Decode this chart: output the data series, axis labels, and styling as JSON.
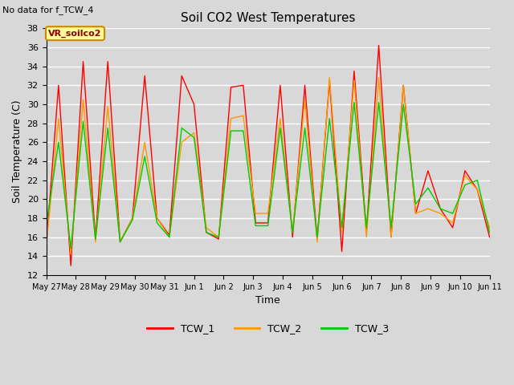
{
  "title": "Soil CO2 West Temperatures",
  "subtitle": "No data for f_TCW_4",
  "xlabel": "Time",
  "ylabel": "Soil Temperature (C)",
  "ylim": [
    12,
    38
  ],
  "yticks": [
    12,
    14,
    16,
    18,
    20,
    22,
    24,
    26,
    28,
    30,
    32,
    34,
    36,
    38
  ],
  "background_color": "#d8d8d8",
  "plot_bg_color": "#d8d8d8",
  "grid_color": "white",
  "annotation_text": "VR_soilco2",
  "annotation_bg": "#ffff99",
  "annotation_border": "#cc8800",
  "colors": {
    "TCW_1": "#ff0000",
    "TCW_2": "#ff9900",
    "TCW_3": "#00cc00"
  },
  "x_tick_labels": [
    "May 27",
    "May 28",
    "May 29",
    "May 30",
    "May 31",
    "Jun 1",
    "Jun 2",
    "Jun 3",
    "Jun 4",
    "Jun 5",
    "Jun 6",
    "Jun 7",
    "Jun 8",
    "Jun 9",
    "Jun 10",
    "Jun 11"
  ],
  "TCW_1": [
    15.0,
    32.0,
    13.0,
    34.5,
    15.8,
    34.5,
    15.5,
    18.0,
    33.0,
    18.0,
    16.2,
    33.0,
    30.0,
    16.5,
    15.8,
    31.8,
    32.0,
    17.5,
    17.5,
    32.0,
    16.0,
    32.0,
    15.8,
    32.5,
    14.5,
    33.5,
    16.5,
    36.2,
    16.0,
    32.0,
    18.5,
    23.0,
    19.0,
    17.0,
    23.0,
    21.0,
    16.0
  ],
  "TCW_2": [
    15.0,
    28.5,
    14.2,
    30.5,
    15.5,
    29.8,
    15.5,
    18.0,
    26.0,
    18.0,
    16.0,
    26.0,
    27.0,
    17.0,
    16.0,
    28.5,
    28.8,
    18.5,
    18.5,
    28.5,
    16.5,
    30.5,
    15.5,
    32.8,
    16.5,
    32.5,
    16.0,
    32.8,
    16.0,
    32.0,
    18.5,
    19.0,
    18.5,
    17.5,
    22.5,
    21.0,
    17.0
  ],
  "TCW_3": [
    17.2,
    26.0,
    14.8,
    28.2,
    15.8,
    27.5,
    15.5,
    17.8,
    24.5,
    17.5,
    16.0,
    27.5,
    26.5,
    16.5,
    16.0,
    27.2,
    27.2,
    17.2,
    17.2,
    27.5,
    16.5,
    27.5,
    16.0,
    28.5,
    17.0,
    30.2,
    17.0,
    30.2,
    17.0,
    30.0,
    19.5,
    21.2,
    19.0,
    18.5,
    21.5,
    22.0,
    16.5
  ]
}
